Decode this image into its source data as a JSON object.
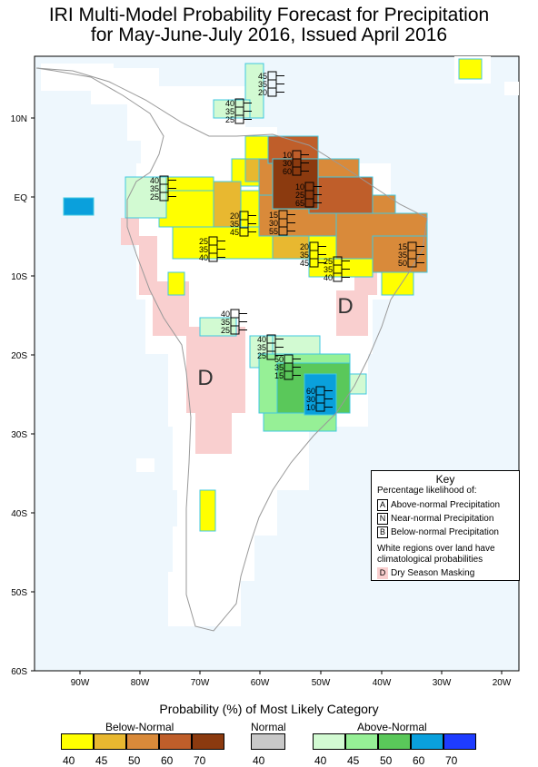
{
  "title": {
    "line1": "IRI Multi-Model Probability Forecast for Precipitation",
    "line2": "for May-June-July 2016, Issued April 2016"
  },
  "lat_labels": [
    "10N",
    "EQ",
    "10S",
    "20S",
    "30S",
    "40S",
    "50S",
    "60S"
  ],
  "lon_labels": [
    "90W",
    "80W",
    "70W",
    "60W",
    "50W",
    "40W",
    "30W",
    "20W"
  ],
  "prob_boxes": [
    {
      "values": [
        "45",
        "35",
        "20"
      ]
    },
    {
      "values": [
        "40",
        "35",
        "25"
      ]
    },
    {
      "values": [
        "10",
        "30",
        "60"
      ]
    },
    {
      "values": [
        "40",
        "35",
        "25"
      ]
    },
    {
      "values": [
        "10",
        "25",
        "65"
      ]
    },
    {
      "values": [
        "20",
        "35",
        "45"
      ]
    },
    {
      "values": [
        "15",
        "30",
        "55"
      ]
    },
    {
      "values": [
        "25",
        "35",
        "40"
      ]
    },
    {
      "values": [
        "20",
        "35",
        "45"
      ]
    },
    {
      "values": [
        "25",
        "35",
        "40"
      ]
    },
    {
      "values": [
        "15",
        "35",
        "50"
      ]
    },
    {
      "values": [
        "40",
        "35",
        "25"
      ]
    },
    {
      "values": [
        "40",
        "35",
        "25"
      ]
    },
    {
      "values": [
        "50",
        "35",
        "15"
      ]
    },
    {
      "values": [
        "60",
        "30",
        "10"
      ]
    }
  ],
  "dry_mask_marks": [
    "D",
    "D"
  ],
  "key": {
    "title": "Key",
    "subtitle": "Percentage likelihood of:",
    "rows": [
      {
        "letter": "A",
        "label": "Above-normal Precipitation"
      },
      {
        "letter": "N",
        "label": "Near-normal Precipitation"
      },
      {
        "letter": "B",
        "label": "Below-normal Precipitation"
      }
    ],
    "white_note_1": "White regions over land have",
    "white_note_2": "climatological probabilities",
    "dry_letter": "D",
    "dry_label": "Dry Season Masking"
  },
  "legend": {
    "title": "Probability (%) of Most Likely Category",
    "below_label": "Below-Normal",
    "normal_label": "Normal",
    "above_label": "Above-Normal",
    "below_colors": [
      "#ffff00",
      "#e8b830",
      "#d98a3a",
      "#bf5e2a",
      "#8b3a0f"
    ],
    "normal_color": "#c8c8c8",
    "above_colors": [
      "#d2fad2",
      "#96f096",
      "#5ac85a",
      "#0aa0dc",
      "#1e3cff"
    ],
    "below_ticks": [
      "40",
      "45",
      "50",
      "60",
      "70"
    ],
    "normal_ticks": [
      "40"
    ],
    "above_ticks": [
      "40",
      "45",
      "50",
      "60",
      "70"
    ]
  }
}
